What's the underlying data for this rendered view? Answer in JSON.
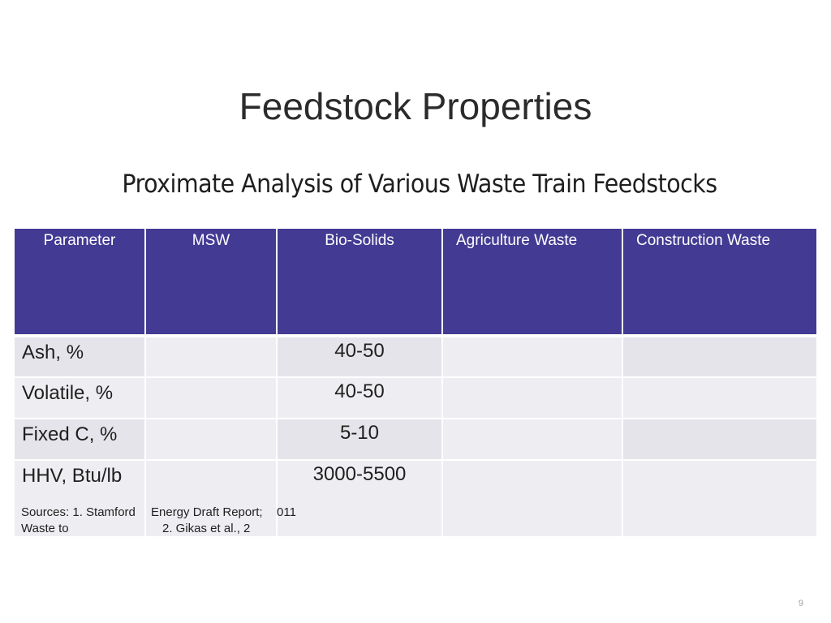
{
  "slide": {
    "title": "Feedstock Properties",
    "subtitle": "Proximate Analysis of Various Waste Train Feedstocks",
    "page_number": "9"
  },
  "table": {
    "headers": [
      "Parameter",
      "MSW",
      "Bio-Solids",
      "Agriculture Waste",
      "Construction Waste"
    ],
    "rows": [
      {
        "label": "Ash, %",
        "msw": "",
        "bio_solids": "40-50",
        "agriculture": "",
        "construction": ""
      },
      {
        "label": "Volatile, %",
        "msw": "",
        "bio_solids": "40-50",
        "agriculture": "",
        "construction": ""
      },
      {
        "label": "Fixed C, %",
        "msw": "",
        "bio_solids": "5-10",
        "agriculture": "",
        "construction": ""
      },
      {
        "label": "HHV, Btu/lb",
        "msw": "",
        "bio_solids": "3000-5500",
        "agriculture": "",
        "construction": ""
      }
    ],
    "sources": {
      "part1": "Sources: 1. Stamford",
      "part2": "Energy Draft Report;",
      "part3": "011",
      "part4": "Waste to",
      "part5": "2. Gikas et al., 2"
    }
  },
  "colors": {
    "header_bg": "#433a93",
    "row_bg": "#e4e4ea",
    "row_alt_bg": "#eeeef2"
  }
}
